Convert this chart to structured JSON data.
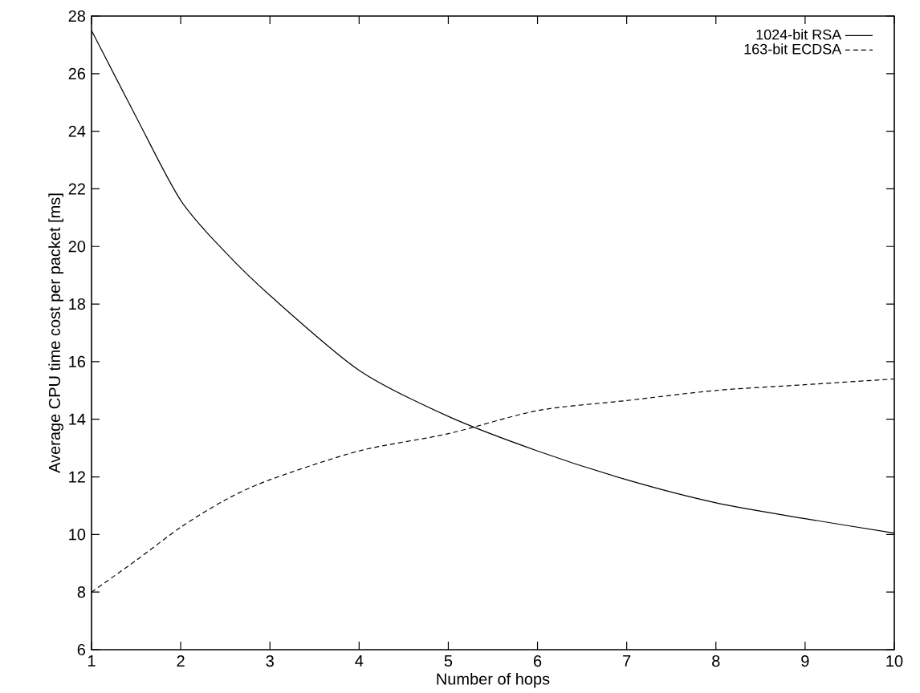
{
  "chart_data": {
    "type": "line",
    "xlabel": "Number of hops",
    "ylabel": "Average CPU time cost per packet [ms]",
    "x": [
      1,
      1.5,
      2,
      2.5,
      3,
      4,
      5,
      6,
      7,
      8,
      9,
      10
    ],
    "series": [
      {
        "name": "1024-bit RSA",
        "color": "#000000",
        "line_style": "solid",
        "values": [
          27.5,
          24.5,
          21.6,
          19.8,
          18.3,
          15.7,
          14.1,
          12.9,
          11.9,
          11.1,
          10.55,
          10.05
        ]
      },
      {
        "name": "163-bit ECDSA",
        "color": "#000000",
        "line_style": "dashed",
        "values": [
          8,
          9.1,
          10.25,
          11.2,
          11.9,
          12.9,
          13.5,
          14.3,
          14.65,
          15.0,
          15.2,
          15.4
        ]
      }
    ],
    "xlim": [
      1,
      10
    ],
    "ylim": [
      6,
      28
    ],
    "xticks": [
      1,
      2,
      3,
      4,
      5,
      6,
      7,
      8,
      9,
      10
    ],
    "yticks": [
      6,
      8,
      10,
      12,
      14,
      16,
      18,
      20,
      22,
      24,
      26,
      28
    ],
    "legend": "top right",
    "grid": false,
    "marker": "none"
  }
}
